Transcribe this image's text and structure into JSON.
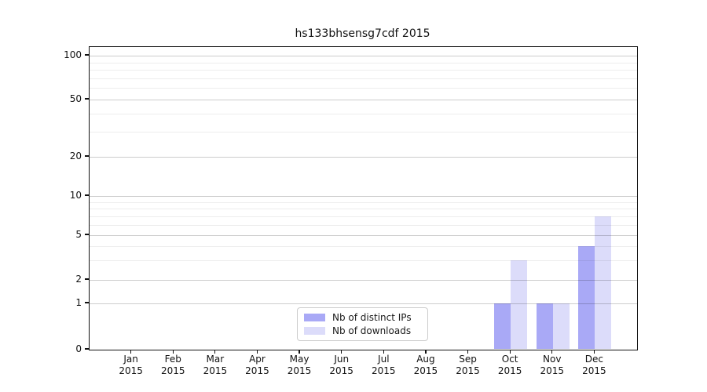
{
  "chart_data": {
    "type": "bar",
    "title": "hs133bhsensg7cdf 2015",
    "year": "2015",
    "categories": [
      "Jan",
      "Feb",
      "Mar",
      "Apr",
      "May",
      "Jun",
      "Jul",
      "Aug",
      "Sep",
      "Oct",
      "Nov",
      "Dec"
    ],
    "series": [
      {
        "name": "Nb of distinct IPs",
        "color": "#a9a9f6",
        "values": [
          0,
          0,
          0,
          0,
          0,
          0,
          0,
          0,
          0,
          1,
          1,
          4
        ]
      },
      {
        "name": "Nb of downloads",
        "color": "#dcdcfa",
        "values": [
          0,
          0,
          0,
          0,
          0,
          0,
          0,
          0,
          0,
          3,
          1,
          7
        ]
      }
    ],
    "xlabel": "",
    "ylabel": "",
    "yscale": "symlog",
    "y_ticks": [
      100,
      50,
      20,
      10,
      5,
      2,
      1,
      0
    ],
    "ylim": [
      0,
      115
    ],
    "grid": {
      "major": true,
      "minor": true
    },
    "legend_position": "lower-center"
  }
}
